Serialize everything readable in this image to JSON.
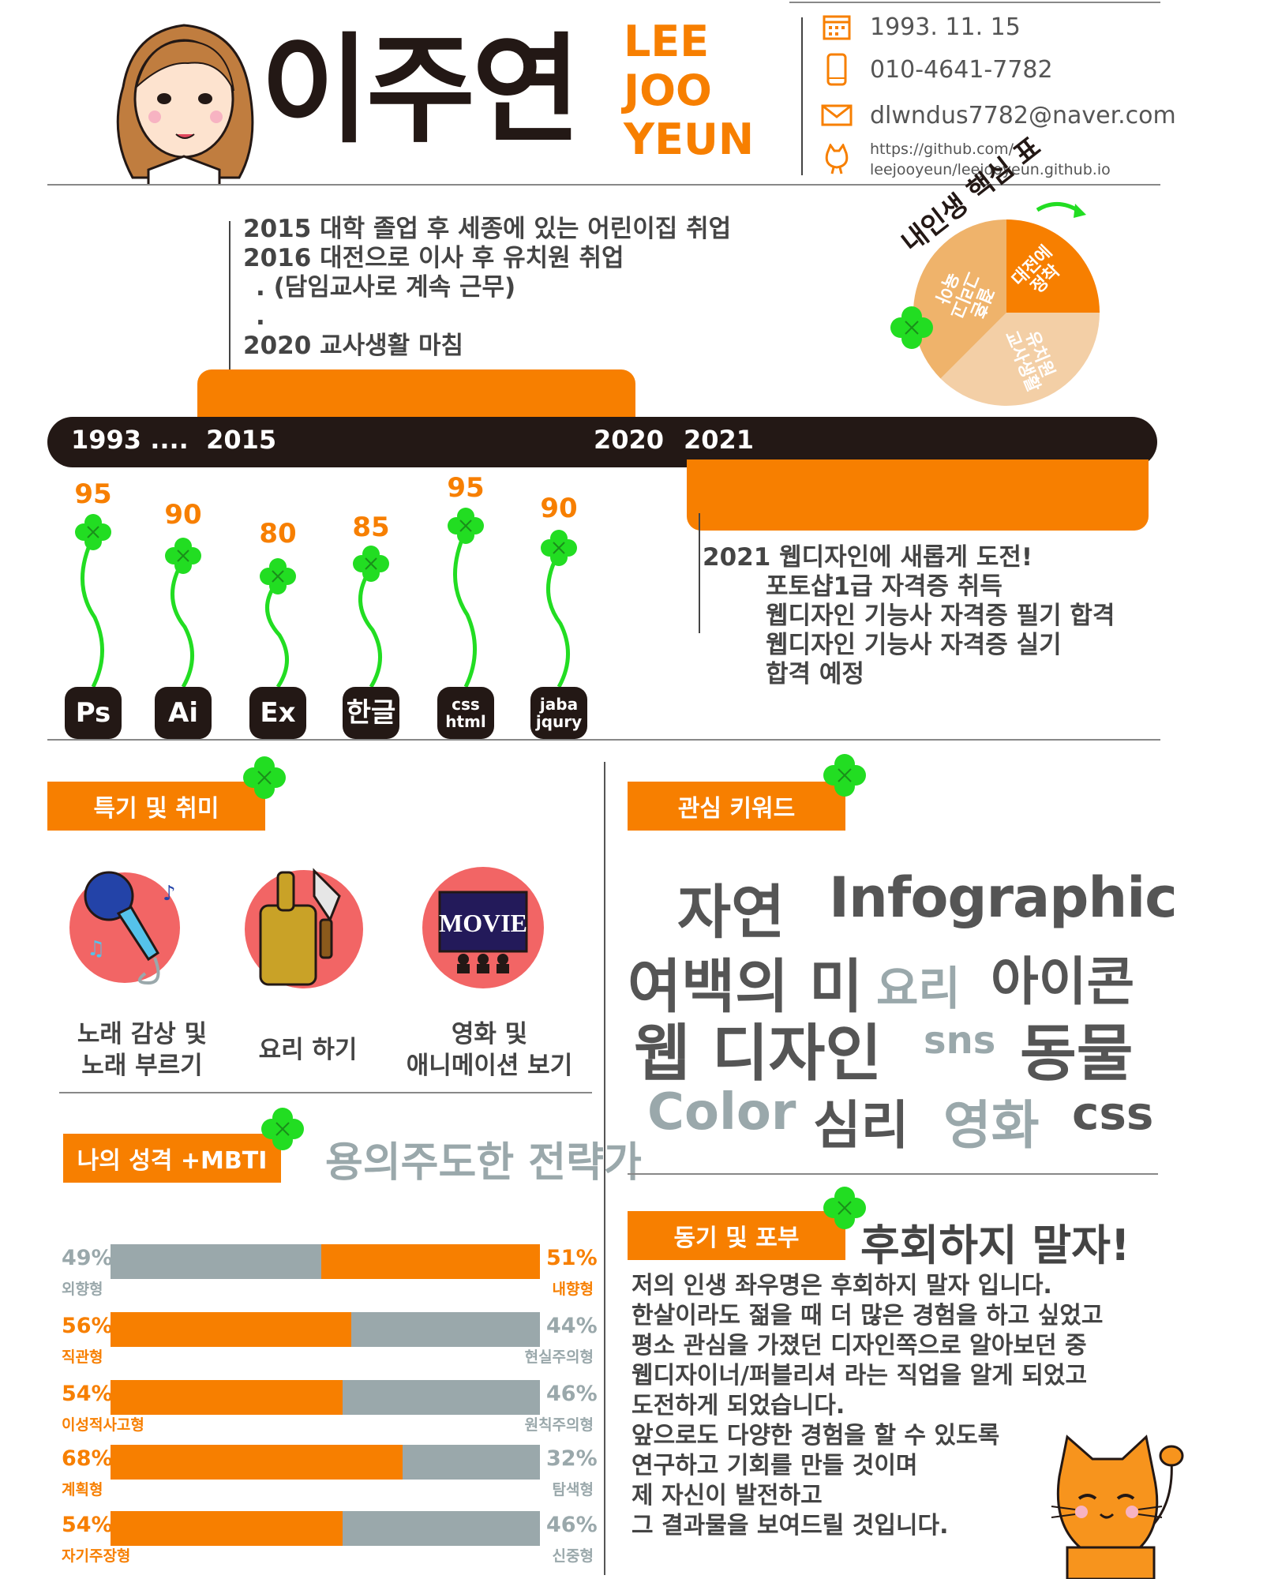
{
  "header": {
    "name_ko": "이주연",
    "name_en": [
      "LEE",
      "JOO",
      "YEUN"
    ],
    "birth": "1993. 11. 15",
    "phone": "010-4641-7782",
    "email": "dlwndus7782@naver.com",
    "github_line1": "https://github.com/",
    "github_line2": "leejooyeun/leejooyeun.github.io"
  },
  "history": {
    "lines": [
      "2015 대학 졸업 후 세종에 있는 어린이집 취업",
      "2016 대전으로 이사 후 유치원 취업",
      ".       (담임교사로 계속 근무)",
      ".",
      "2020 교사생활 마침"
    ],
    "recent": [
      "2021 웹디자인에 새롭게 도전!",
      "포토샵1급 자격증 취득",
      "웹디자인 기능사 자격증 필기 합격",
      "웹디자인 기능사 자격증 실기",
      "합격 예정"
    ]
  },
  "timeline": {
    "y1": "1993 ....  2015",
    "y2": "2020",
    "y3": "2021"
  },
  "core_chart": {
    "title": "내인생 핵심 표",
    "slices": [
      {
        "label": "대전에 정착",
        "value": 25,
        "color": "#f77f00"
      },
      {
        "label": "유치원 교사생활",
        "value": 37.5,
        "color": "#f3cfa6"
      },
      {
        "label": "결혼 그리고 육아",
        "value": 37.5,
        "color": "#efb36b"
      }
    ]
  },
  "skills": [
    {
      "name": "Ps",
      "score": "95"
    },
    {
      "name": "Ai",
      "score": "90"
    },
    {
      "name": "Ex",
      "score": "80"
    },
    {
      "name": "한글",
      "score": "85"
    },
    {
      "name": "css html",
      "score": "95"
    },
    {
      "name": "jaba jqury",
      "score": "90"
    }
  ],
  "sections": {
    "hobby": "특기 및 취미",
    "keywords": "관심 키워드",
    "personality": "나의 성격 +MBTI",
    "motive": "동기 및 포부"
  },
  "hobbies": [
    {
      "label_1": "노래 감상 및",
      "label_2": "노래 부르기"
    },
    {
      "label_1": "요리 하기",
      "label_2": ""
    },
    {
      "label_1": "영화 및",
      "label_2": "애니메이션 보기"
    }
  ],
  "movie_sign": "MOVIE",
  "mbti": {
    "type": "용의주도한 전략가",
    "rows": [
      {
        "left_pct": "49%",
        "left": "외향형",
        "right_pct": "51%",
        "right": "내향형",
        "highlight": "right",
        "value": 0.51
      },
      {
        "left_pct": "56%",
        "left": "직관형",
        "right_pct": "44%",
        "right": "현실주의형",
        "highlight": "left",
        "value": 0.56
      },
      {
        "left_pct": "54%",
        "left": "이성적사고형",
        "right_pct": "46%",
        "right": "원칙주의형",
        "highlight": "left",
        "value": 0.54
      },
      {
        "left_pct": "68%",
        "left": "계획형",
        "right_pct": "32%",
        "right": "탐색형",
        "highlight": "left",
        "value": 0.68
      },
      {
        "left_pct": "54%",
        "left": "자기주장형",
        "right_pct": "46%",
        "right": "신중형",
        "highlight": "left",
        "value": 0.54
      }
    ]
  },
  "keywords": [
    "자연",
    "Infographic",
    "여백의 미",
    "요리",
    "아이콘",
    "웹 디자인",
    "sns",
    "동물",
    "Color",
    "심리",
    "영화",
    "css"
  ],
  "motto": "후회하지 말자!",
  "motive_text": [
    "저의 인생 좌우명은 후회하지 말자 입니다.",
    "한살이라도 젊을 때 더 많은 경험을 하고 싶었고",
    "평소 관심을 가졌던 디자인쪽으로 알아보던 중",
    "웹디자이너/퍼블리셔 라는 직업을 알게 되었고",
    "도전하게 되었습니다.",
    "앞으로도 다양한 경험을 할 수 있도록",
    "연구하고 기회를 만들 것이며",
    "제 자신이 발전하고",
    "그 결과물을 보여드릴 것입니다."
  ],
  "colors": {
    "accent": "#f77f00",
    "dark": "#231815",
    "gray": "#9aa8ab",
    "clover": "#22dd22"
  }
}
